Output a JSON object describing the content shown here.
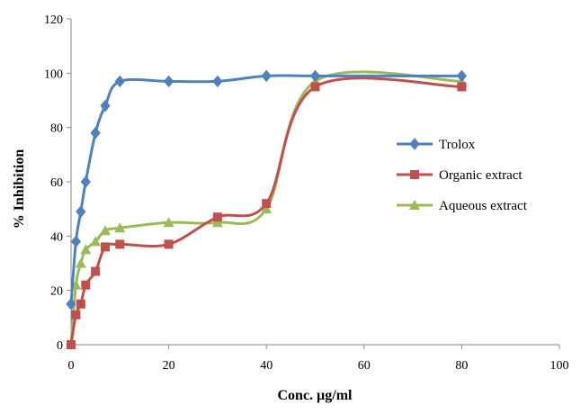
{
  "chart_data": {
    "type": "line",
    "title": "",
    "xlabel": "Conc. µg/ml",
    "ylabel": "% Inhibition",
    "xlim": [
      0,
      100
    ],
    "ylim": [
      0,
      120
    ],
    "x_ticks": [
      "0",
      "20",
      "40",
      "60",
      "80",
      "100"
    ],
    "y_ticks": [
      "0",
      "20",
      "40",
      "60",
      "80",
      "100",
      "120"
    ],
    "grid": false,
    "legend_position": "right",
    "smooth": true,
    "series": [
      {
        "name": "Trolox",
        "color": "#4f81bd",
        "marker": "diamond",
        "x": [
          0,
          1,
          2,
          3,
          5,
          7,
          10,
          20,
          30,
          40,
          50,
          80
        ],
        "y": [
          15,
          38,
          49,
          60,
          78,
          88,
          97,
          97,
          97,
          99,
          99,
          99
        ]
      },
      {
        "name": "Organic extract",
        "color": "#c0504d",
        "marker": "square",
        "x": [
          0,
          1,
          2,
          3,
          5,
          7,
          10,
          20,
          30,
          40,
          50,
          80
        ],
        "y": [
          0,
          11,
          15,
          22,
          27,
          36,
          37,
          37,
          47,
          52,
          95,
          95
        ]
      },
      {
        "name": "Aqueous extract",
        "color": "#9bbb59",
        "marker": "triangle",
        "x": [
          0,
          1,
          2,
          3,
          5,
          7,
          10,
          20,
          30,
          40,
          50,
          80
        ],
        "y": [
          0,
          22,
          30,
          35,
          38,
          42,
          43,
          45,
          45,
          50,
          97,
          97
        ]
      }
    ]
  }
}
